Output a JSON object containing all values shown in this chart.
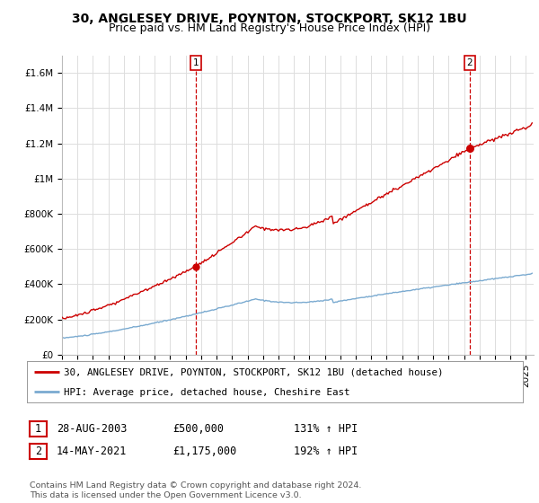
{
  "title": "30, ANGLESEY DRIVE, POYNTON, STOCKPORT, SK12 1BU",
  "subtitle": "Price paid vs. HM Land Registry's House Price Index (HPI)",
  "ylim": [
    0,
    1700000
  ],
  "yticks": [
    0,
    200000,
    400000,
    600000,
    800000,
    1000000,
    1200000,
    1400000,
    1600000
  ],
  "ytick_labels": [
    "£0",
    "£200K",
    "£400K",
    "£600K",
    "£800K",
    "£1M",
    "£1.2M",
    "£1.4M",
    "£1.6M"
  ],
  "xlim_start": 1995.0,
  "xlim_end": 2025.5,
  "sale1_x": 2003.65,
  "sale1_y": 500000,
  "sale2_x": 2021.36,
  "sale2_y": 1175000,
  "hpi_color": "#7aaad0",
  "price_color": "#cc0000",
  "grid_color": "#dddddd",
  "bg_color": "#ffffff",
  "legend_label1": "30, ANGLESEY DRIVE, POYNTON, STOCKPORT, SK12 1BU (detached house)",
  "legend_label2": "HPI: Average price, detached house, Cheshire East",
  "table_row1": [
    "1",
    "28-AUG-2003",
    "£500,000",
    "131% ↑ HPI"
  ],
  "table_row2": [
    "2",
    "14-MAY-2021",
    "£1,175,000",
    "192% ↑ HPI"
  ],
  "footer": "Contains HM Land Registry data © Crown copyright and database right 2024.\nThis data is licensed under the Open Government Licence v3.0.",
  "title_fontsize": 10,
  "subtitle_fontsize": 9,
  "tick_fontsize": 7.5
}
